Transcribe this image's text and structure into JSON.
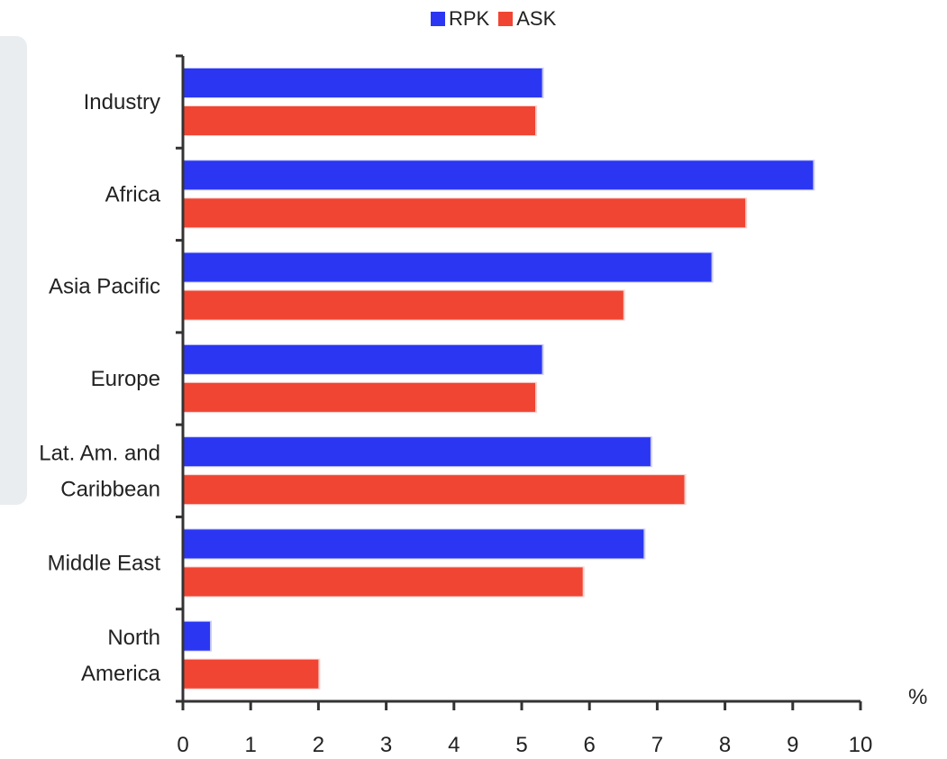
{
  "chart_data": {
    "type": "bar",
    "orientation": "horizontal",
    "categories": [
      "Industry",
      "Africa",
      "Asia Pacific",
      "Europe",
      "Lat. Am. and Caribbean",
      "Middle East",
      "North America"
    ],
    "category_lines": [
      [
        "Industry"
      ],
      [
        "Africa"
      ],
      [
        "Asia Pacific"
      ],
      [
        "Europe"
      ],
      [
        "Lat. Am. and",
        "Caribbean"
      ],
      [
        "Middle East"
      ],
      [
        "North",
        "America"
      ]
    ],
    "series": [
      {
        "name": "RPK",
        "color": "#2b36f2",
        "values": [
          5.3,
          9.3,
          7.8,
          5.3,
          6.9,
          6.8,
          0.4
        ]
      },
      {
        "name": "ASK",
        "color": "#f04533",
        "values": [
          5.2,
          8.3,
          6.5,
          5.2,
          7.4,
          5.9,
          2.0
        ]
      }
    ],
    "x_unit": "%",
    "xlim": [
      0,
      10
    ],
    "x_ticks": [
      "0",
      "1",
      "2",
      "3",
      "4",
      "5",
      "6",
      "7",
      "8",
      "9",
      "10"
    ],
    "legend": "top",
    "grid": false
  }
}
